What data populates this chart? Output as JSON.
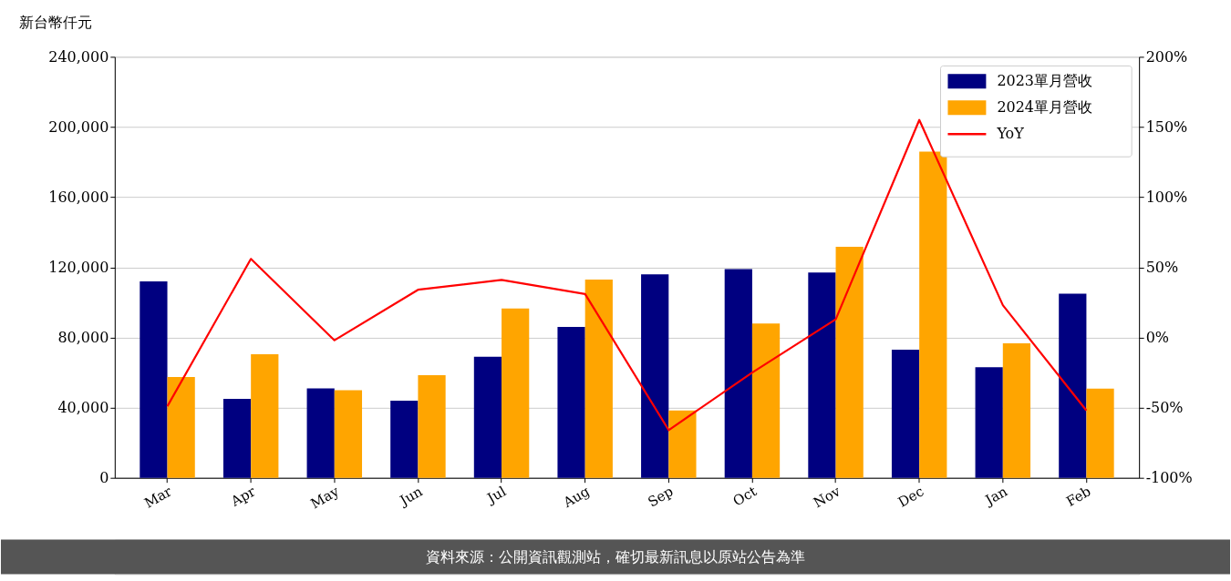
{
  "chart_data": {
    "type": "bar",
    "ylabel": "新台幣仟元",
    "categories": [
      "Mar",
      "Apr",
      "May",
      "Jun",
      "Jul",
      "Aug",
      "Sep",
      "Oct",
      "Nov",
      "Dec",
      "Jan",
      "Feb"
    ],
    "series": [
      {
        "name": "2023單月營收",
        "color": "#000080",
        "values": [
          112000,
          45000,
          51000,
          44000,
          69000,
          86000,
          116000,
          119000,
          117000,
          73000,
          63000,
          105000
        ]
      },
      {
        "name": "2024單月營收",
        "color": "#ffa500",
        "values": [
          57500,
          70500,
          50000,
          58500,
          96500,
          113000,
          38400,
          88000,
          131700,
          186000,
          76700,
          50800
        ]
      },
      {
        "name": "YoY",
        "type": "line",
        "axis": "y2",
        "color": "#ff0000",
        "values": [
          -49,
          56,
          -2,
          34,
          41,
          31,
          -66,
          -25,
          13,
          155,
          23,
          -52
        ]
      }
    ],
    "ylim": [
      0,
      240000
    ],
    "yticks": [
      0,
      {
        "value": 40000,
        "label": "40,000"
      },
      {
        "value": 80000,
        "label": "80,000"
      },
      {
        "value": 120000,
        "label": "120,000"
      },
      {
        "value": 160000,
        "label": "160,000"
      },
      {
        "value": 200000,
        "label": "200,000"
      },
      {
        "value": 240000,
        "label": "240,000"
      }
    ],
    "y2lim": [
      -100,
      200
    ],
    "y2ticks": [
      {
        "value": -100,
        "label": "-100%"
      },
      {
        "value": -50,
        "label": "-50%"
      },
      {
        "value": 0,
        "label": "0%"
      },
      {
        "value": 50,
        "label": "50%"
      },
      {
        "value": 100,
        "label": "100%"
      },
      {
        "value": 150,
        "label": "150%"
      },
      {
        "value": 200,
        "label": "200%"
      }
    ],
    "grid": "y",
    "legend": "top right",
    "marker": "none",
    "line_style": "solid",
    "annotations": [
      "資料來源：公開資訊觀測站，確切最新訊息以原站公告為準"
    ]
  }
}
